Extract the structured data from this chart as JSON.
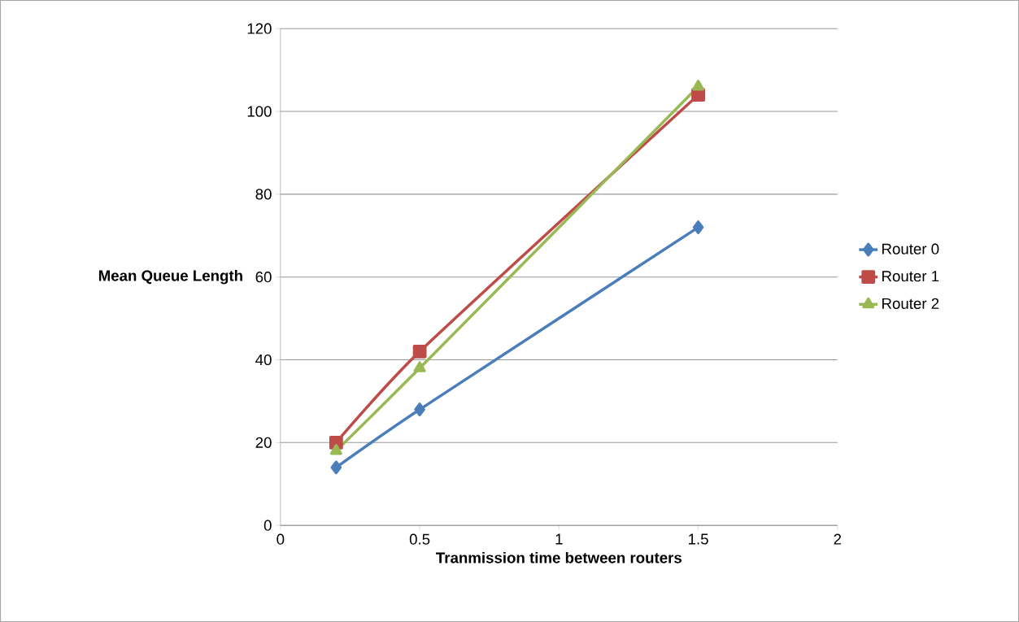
{
  "chart_data": {
    "type": "line",
    "xlabel": "Tranmission time between routers",
    "ylabel": "Mean Queue Length",
    "x": [
      0.2,
      0.5,
      1.5
    ],
    "series": [
      {
        "name": "Router 0",
        "color": "#4a7ebb",
        "marker": "diamond",
        "values": [
          14,
          28,
          72
        ]
      },
      {
        "name": "Router 1",
        "color": "#be4b48",
        "marker": "square",
        "values": [
          20,
          42,
          104
        ]
      },
      {
        "name": "Router 2",
        "color": "#98b954",
        "marker": "triangle",
        "values": [
          18,
          38,
          106
        ]
      }
    ],
    "xlim": [
      0,
      2
    ],
    "xticks": [
      0,
      0.5,
      1,
      1.5,
      2
    ],
    "ylim": [
      0,
      120
    ],
    "yticks": [
      0,
      20,
      40,
      60,
      80,
      100,
      120
    ],
    "grid": "y",
    "legend": "right",
    "line_style": "solid"
  }
}
